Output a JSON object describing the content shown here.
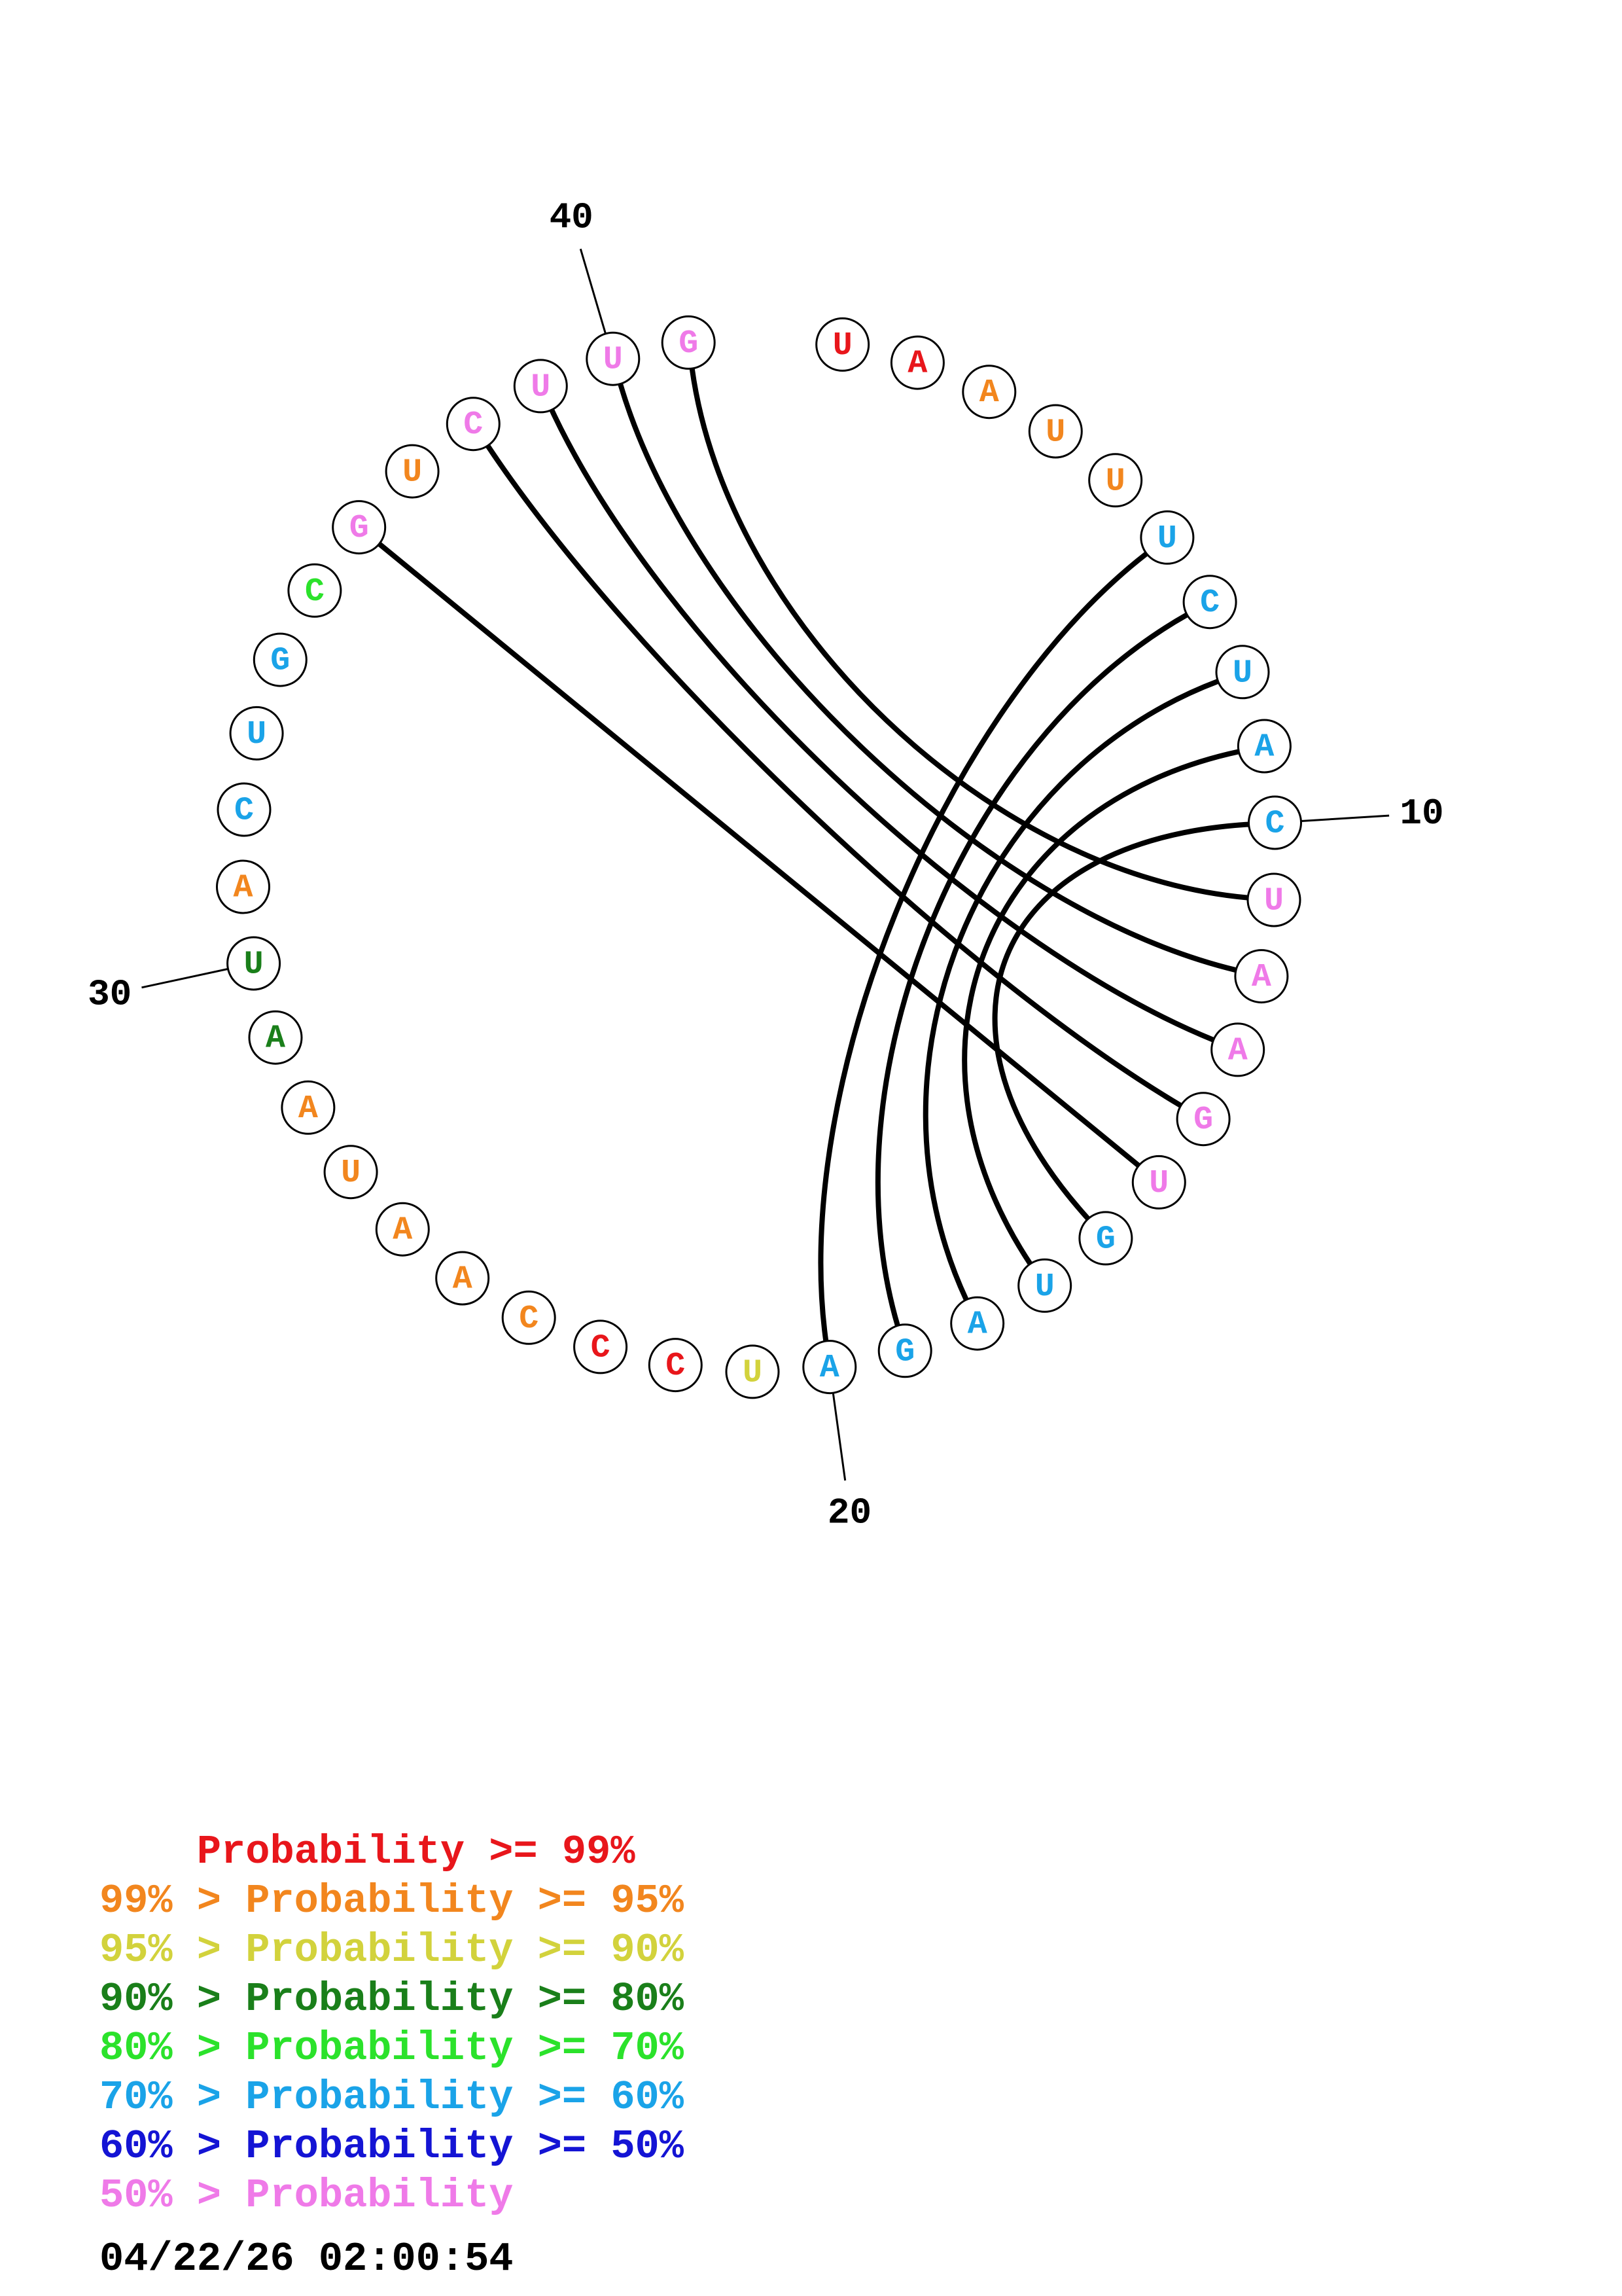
{
  "colors": {
    "p99": "#e8161b",
    "p95": "#f2861e",
    "p90": "#d2d23c",
    "p80": "#1a7f1a",
    "p70": "#2be22b",
    "p60": "#1aa3e8",
    "p50": "#1414d4",
    "low": "#ef7ae8"
  },
  "sequence": [
    {
      "base": "U",
      "prob": "p99"
    },
    {
      "base": "A",
      "prob": "p99"
    },
    {
      "base": "A",
      "prob": "p95"
    },
    {
      "base": "U",
      "prob": "p95"
    },
    {
      "base": "U",
      "prob": "p95"
    },
    {
      "base": "U",
      "prob": "p60"
    },
    {
      "base": "C",
      "prob": "p60"
    },
    {
      "base": "U",
      "prob": "p60"
    },
    {
      "base": "A",
      "prob": "p60"
    },
    {
      "base": "C",
      "prob": "p60"
    },
    {
      "base": "U",
      "prob": "low"
    },
    {
      "base": "A",
      "prob": "low"
    },
    {
      "base": "A",
      "prob": "low"
    },
    {
      "base": "G",
      "prob": "low"
    },
    {
      "base": "U",
      "prob": "low"
    },
    {
      "base": "G",
      "prob": "p60"
    },
    {
      "base": "U",
      "prob": "p60"
    },
    {
      "base": "A",
      "prob": "p60"
    },
    {
      "base": "G",
      "prob": "p60"
    },
    {
      "base": "A",
      "prob": "p60"
    },
    {
      "base": "U",
      "prob": "p90"
    },
    {
      "base": "C",
      "prob": "p99"
    },
    {
      "base": "C",
      "prob": "p99"
    },
    {
      "base": "C",
      "prob": "p95"
    },
    {
      "base": "A",
      "prob": "p95"
    },
    {
      "base": "A",
      "prob": "p95"
    },
    {
      "base": "U",
      "prob": "p95"
    },
    {
      "base": "A",
      "prob": "p95"
    },
    {
      "base": "A",
      "prob": "p80"
    },
    {
      "base": "U",
      "prob": "p80"
    },
    {
      "base": "A",
      "prob": "p95"
    },
    {
      "base": "C",
      "prob": "p60"
    },
    {
      "base": "U",
      "prob": "p60"
    },
    {
      "base": "G",
      "prob": "p60"
    },
    {
      "base": "C",
      "prob": "p70"
    },
    {
      "base": "G",
      "prob": "low"
    },
    {
      "base": "U",
      "prob": "p95"
    },
    {
      "base": "C",
      "prob": "low"
    },
    {
      "base": "U",
      "prob": "low"
    },
    {
      "base": "U",
      "prob": "low"
    },
    {
      "base": "G",
      "prob": "low"
    }
  ],
  "pairs": [
    [
      6,
      20
    ],
    [
      7,
      19
    ],
    [
      8,
      18
    ],
    [
      9,
      17
    ],
    [
      10,
      16
    ],
    [
      11,
      41
    ],
    [
      12,
      40
    ],
    [
      13,
      39
    ],
    [
      14,
      38
    ],
    [
      15,
      36
    ]
  ],
  "position_labels": [
    {
      "index": 10,
      "text": "10"
    },
    {
      "index": 20,
      "text": "20"
    },
    {
      "index": 30,
      "text": "30"
    },
    {
      "index": 40,
      "text": "40"
    }
  ],
  "legend": [
    {
      "text": "    Probability >= 99%",
      "color_key": "p99"
    },
    {
      "text": "99% > Probability >= 95%",
      "color_key": "p95"
    },
    {
      "text": "95% > Probability >= 90%",
      "color_key": "p90"
    },
    {
      "text": "90% > Probability >= 80%",
      "color_key": "p80"
    },
    {
      "text": "80% > Probability >= 70%",
      "color_key": "p70"
    },
    {
      "text": "70% > Probability >= 60%",
      "color_key": "p60"
    },
    {
      "text": "60% > Probability >= 50%",
      "color_key": "p50"
    },
    {
      "text": "50% > Probability",
      "color_key": "low"
    }
  ],
  "timestamp": "04/22/26 02:00:54"
}
